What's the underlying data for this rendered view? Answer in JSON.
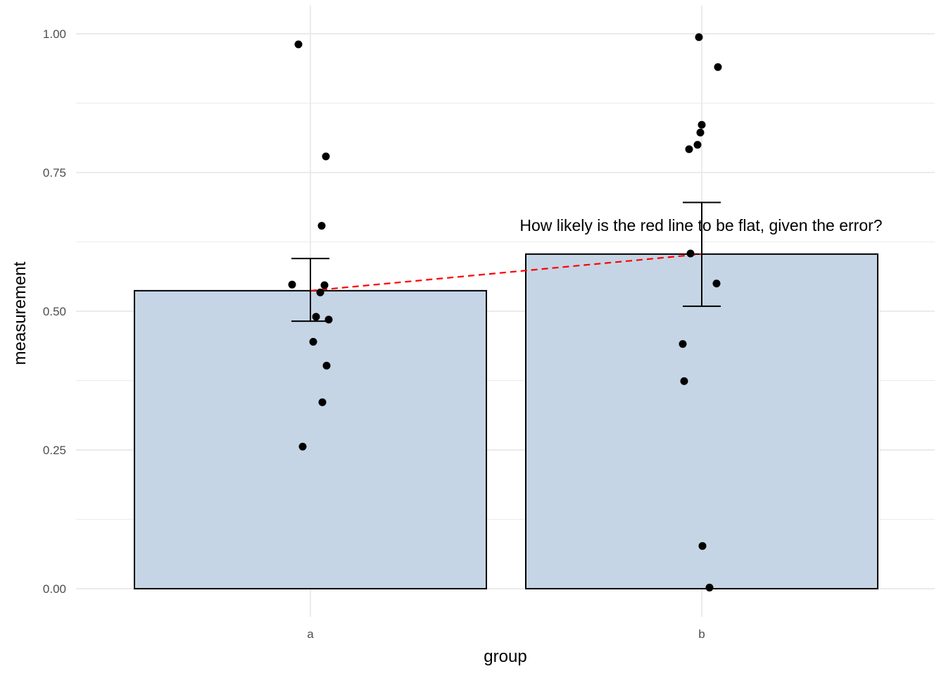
{
  "chart_data": {
    "type": "bar",
    "xlabel": "group",
    "ylabel": "measurement",
    "categories": [
      "a",
      "b"
    ],
    "values": [
      0.537,
      0.603
    ],
    "error_bars": [
      {
        "category": "a",
        "low": 0.482,
        "high": 0.595
      },
      {
        "category": "b",
        "low": 0.509,
        "high": 0.696
      }
    ],
    "ylim": [
      -0.035,
      1.035
    ],
    "y_ticks": [
      0.0,
      0.25,
      0.5,
      0.75,
      1.0
    ],
    "y_tick_labels": [
      "0.00",
      "0.25",
      "0.50",
      "0.75",
      "1.00"
    ],
    "grid": true,
    "points": [
      {
        "category": "a",
        "values": [
          0.981,
          0.779,
          0.654,
          0.548,
          0.547,
          0.534,
          0.49,
          0.485,
          0.445,
          0.402,
          0.336,
          0.256
        ]
      },
      {
        "category": "b",
        "values": [
          0.994,
          0.94,
          0.836,
          0.822,
          0.8,
          0.792,
          0.604,
          0.55,
          0.441,
          0.374,
          0.077,
          0.002
        ]
      }
    ],
    "trend_line": {
      "from": 0.537,
      "to": 0.603,
      "color": "#ff0000",
      "style": "dashed"
    },
    "annotation": {
      "text": "How likely is the red line to be flat, given the error?",
      "x": 1.5,
      "y": 0.655
    },
    "colors": {
      "bar_fill": "#c5d5e5",
      "bar_stroke": "#000000",
      "point": "#000000",
      "grid": "#ebebeb"
    }
  }
}
